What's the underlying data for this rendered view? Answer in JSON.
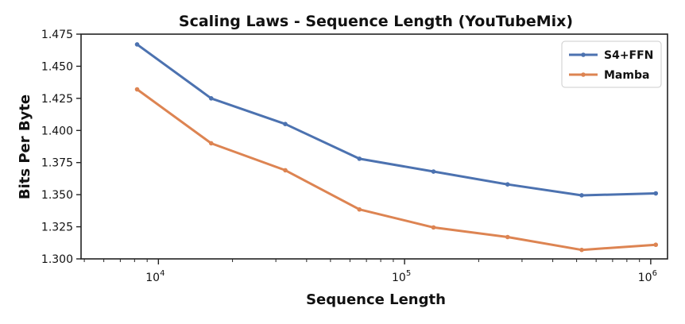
{
  "chart_data": {
    "type": "line",
    "title": "Scaling Laws - Sequence Length (YouTubeMix)",
    "xlabel": "Sequence Length",
    "ylabel": "Bits Per Byte",
    "xscale": "log",
    "xlim": [
      4850,
      1170000
    ],
    "ylim": [
      1.3,
      1.475
    ],
    "x": [
      8192,
      16384,
      32768,
      65536,
      131072,
      262144,
      524288,
      1048576
    ],
    "x_tick_labels": [
      {
        "value": 10000,
        "base": "10",
        "exp": "4"
      },
      {
        "value": 100000,
        "base": "10",
        "exp": "5"
      },
      {
        "value": 1000000,
        "base": "10",
        "exp": "6"
      }
    ],
    "y_ticks": [
      "1.300",
      "1.325",
      "1.350",
      "1.375",
      "1.400",
      "1.425",
      "1.450",
      "1.475"
    ],
    "series": [
      {
        "name": "S4+FFN",
        "color": "#4c72b0",
        "values": [
          1.467,
          1.425,
          1.405,
          1.378,
          1.368,
          1.358,
          1.3495,
          1.351
        ]
      },
      {
        "name": "Mamba",
        "color": "#dd8452",
        "values": [
          1.432,
          1.39,
          1.369,
          1.3385,
          1.3245,
          1.317,
          1.307,
          1.311
        ]
      }
    ],
    "grid": false,
    "legend_position": "top-right"
  }
}
